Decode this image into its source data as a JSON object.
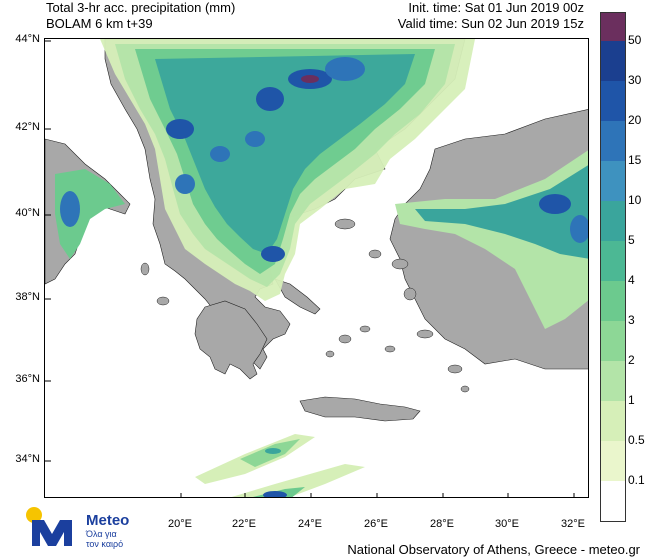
{
  "header": {
    "title_line1": "Total 3-hr acc. precipitation (mm)",
    "title_line2": "BOLAM 6 km t+39",
    "init_time": "Init. time: Sat 01 Jun 2019 00z",
    "valid_time": "Valid time: Sun 02 Jun 2019 15z"
  },
  "axes": {
    "lat_labels": [
      "44°N",
      "42°N",
      "40°N",
      "38°N",
      "36°N",
      "34°N"
    ],
    "lon_labels": [
      "20°E",
      "22°E",
      "24°E",
      "26°E",
      "28°E",
      "30°E",
      "32°E"
    ]
  },
  "legend": {
    "levels": [
      {
        "label": "50",
        "color": "#1b3f8f"
      },
      {
        "label": "30",
        "color": "#1f55a8"
      },
      {
        "label": "20",
        "color": "#2e74b8"
      },
      {
        "label": "15",
        "color": "#3e92bf"
      },
      {
        "label": "10",
        "color": "#3aa59c"
      },
      {
        "label": "5",
        "color": "#4cb894"
      },
      {
        "label": "4",
        "color": "#6cca8e"
      },
      {
        "label": "3",
        "color": "#8dd796"
      },
      {
        "label": "2",
        "color": "#b3e4a8"
      },
      {
        "label": "1",
        "color": "#d6efb8"
      },
      {
        "label": "0.5",
        "color": "#eaf6cc"
      },
      {
        "label": "0.1",
        "color": "#ffffff"
      }
    ],
    "top_color": "#6b2f5e"
  },
  "logo": {
    "brand": "Meteo",
    "tagline_line1": "Όλα για",
    "tagline_line2": "τον καιρό"
  },
  "footer": "National Observatory of Athens, Greece - meteo.gr"
}
